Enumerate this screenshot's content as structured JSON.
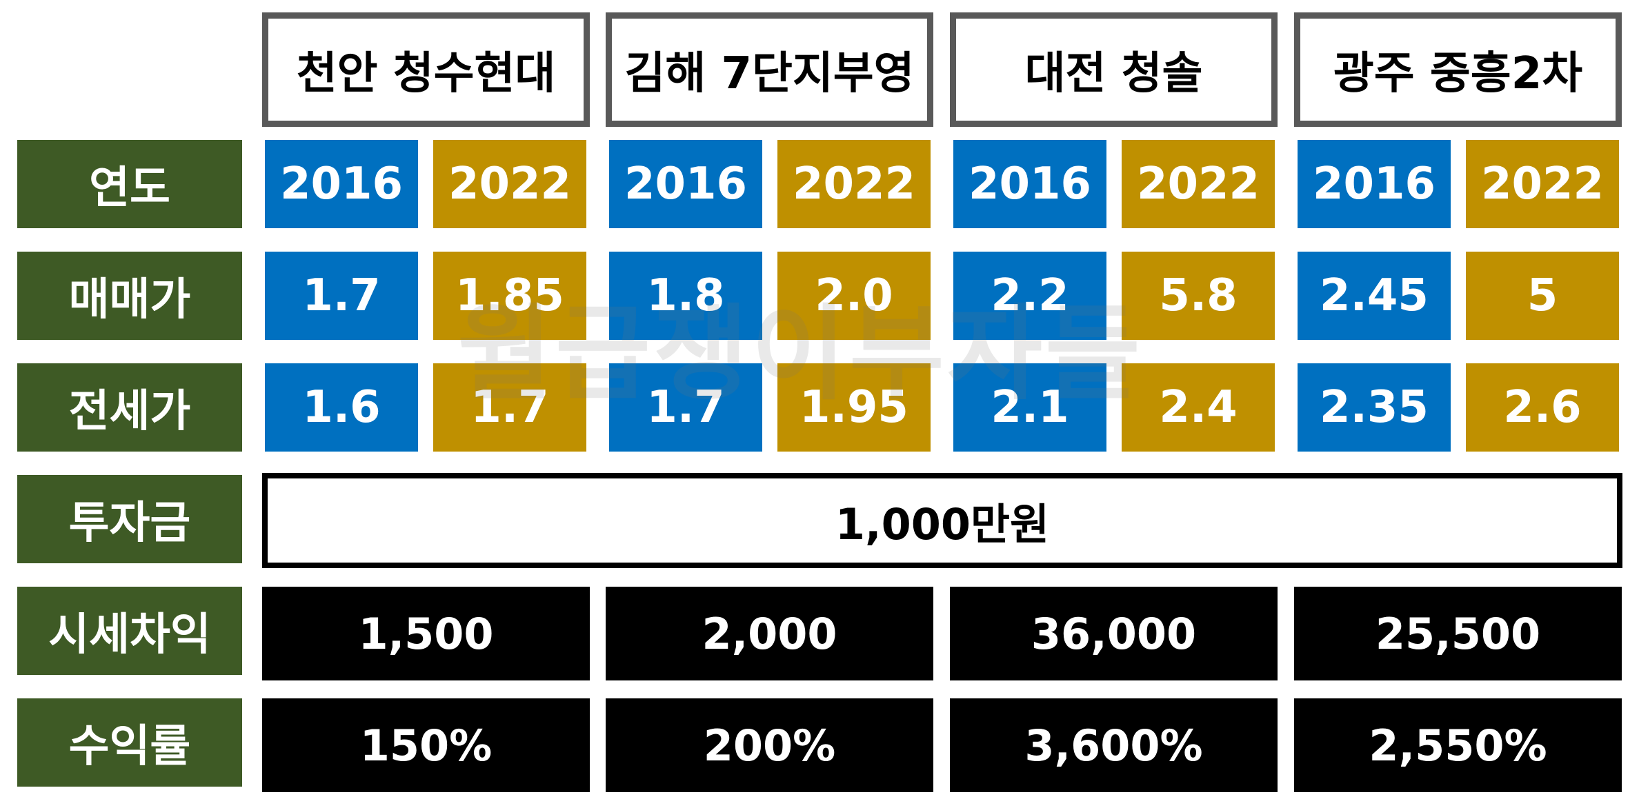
{
  "complexes": [
    "천안 청수현대",
    "김해 7단지부영",
    "대전 청솔",
    "광주 중흥2차"
  ],
  "row_labels": {
    "year": "연도",
    "sale_price": "매매가",
    "jeonse_price": "전세가",
    "investment": "투자금",
    "capital_gain": "시세차익",
    "return_rate": "수익률"
  },
  "years": [
    "2016",
    "2022",
    "2016",
    "2022",
    "2016",
    "2022",
    "2016",
    "2022"
  ],
  "sale_prices": [
    "1.7",
    "1.85",
    "1.8",
    "2.0",
    "2.2",
    "5.8",
    "2.45",
    "5"
  ],
  "jeonse_prices": [
    "1.6",
    "1.7",
    "1.7",
    "1.95",
    "2.1",
    "2.4",
    "2.35",
    "2.6"
  ],
  "investment": "1,000만원",
  "capital_gains": [
    "1,500",
    "2,000",
    "36,000",
    "25,500"
  ],
  "return_rates": [
    "150%",
    "200%",
    "3,600%",
    "2,550%"
  ],
  "watermark": "월급쟁이부자들",
  "colors": {
    "label_green": "#3e5a25",
    "year_2016_blue": "#0070c0",
    "year_2022_gold": "#bf9000",
    "result_black": "#000000",
    "header_border_gray": "#595959"
  }
}
